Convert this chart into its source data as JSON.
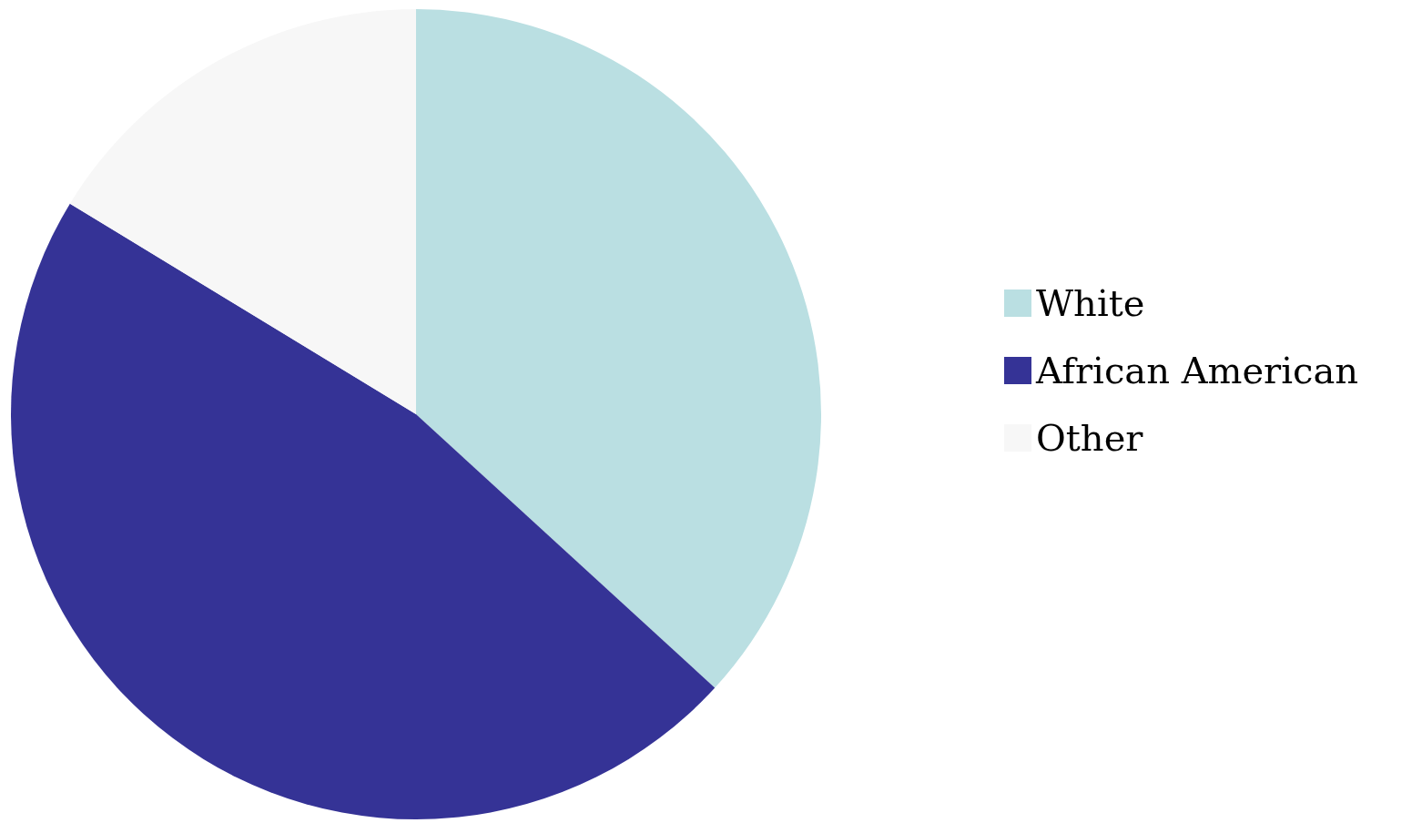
{
  "chart_data": {
    "type": "pie",
    "categories": [
      "White",
      "African American",
      "Other"
    ],
    "values": [
      36.8,
      46.9,
      16.3
    ],
    "colors": [
      "#badfe2",
      "#353396",
      "#f7f7f7"
    ],
    "legend": "right"
  }
}
